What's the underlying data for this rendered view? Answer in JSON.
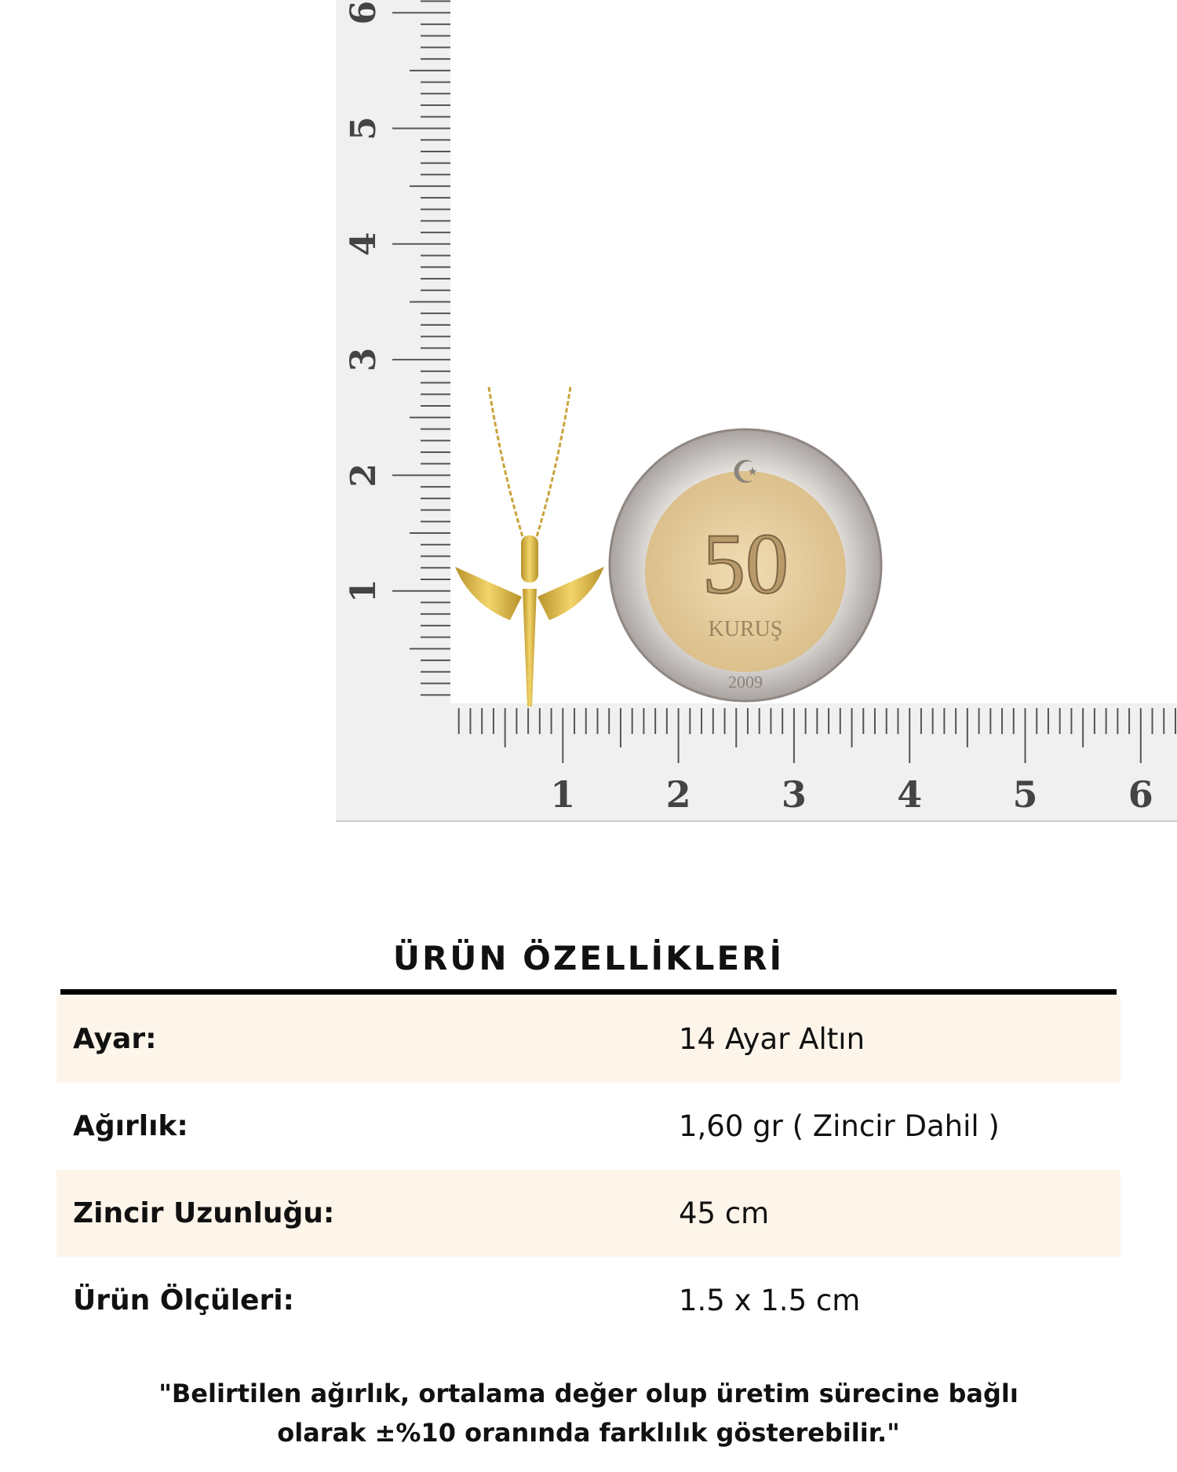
{
  "photo": {
    "ruler_vertical_labels": [
      "1",
      "2",
      "3",
      "4",
      "5",
      "6"
    ],
    "ruler_horizontal_labels": [
      "1",
      "2",
      "3",
      "4",
      "5",
      "6"
    ],
    "coin": {
      "value": "50",
      "unit": "KURUŞ",
      "year": "2009"
    },
    "colors": {
      "gold": "#d9b23a",
      "coin_outer": "#c9c4c0",
      "coin_inner": "#e6cfa2",
      "ruler_bg": "#efefef"
    }
  },
  "specs": {
    "title": "ÜRÜN ÖZELLİKLERİ",
    "rows": [
      {
        "label": "Ayar:",
        "value": "14 Ayar Altın"
      },
      {
        "label": "Ağırlık:",
        "value": "1,60 gr ( Zincir Dahil )"
      },
      {
        "label": "Zincir Uzunluğu:",
        "value": "45 cm"
      },
      {
        "label": "Ürün Ölçüleri:",
        "value": "1.5 x 1.5 cm"
      }
    ],
    "note_line1": "\"Belirtilen ağırlık, ortalama değer olup üretim sürecine bağlı",
    "note_line2": "olarak ±%10 oranında farklılık gösterebilir.\""
  }
}
